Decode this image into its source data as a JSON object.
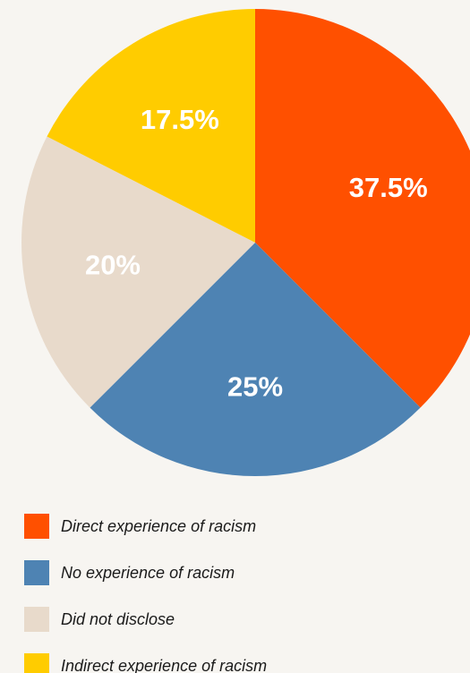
{
  "chart_data": {
    "type": "pie",
    "title": "",
    "slices": [
      {
        "label": "Direct experience of racism",
        "value": 37.5,
        "display": "37.5%",
        "color": "#ff5000"
      },
      {
        "label": "No experience of racism",
        "value": 25,
        "display": "25%",
        "color": "#4e83b3"
      },
      {
        "label": "Did not disclose",
        "value": 20,
        "display": "20%",
        "color": "#e8dacb"
      },
      {
        "label": "Indirect experience of racism",
        "value": 17.5,
        "display": "17.5%",
        "color": "#ffcc00"
      }
    ],
    "start": "12 o'clock",
    "direction": "clockwise",
    "legend_position": "bottom-left"
  },
  "colors": {
    "background": "#f7f5f1",
    "slice_label_text": "#ffffff",
    "legend_text": "#1a1a1a"
  }
}
